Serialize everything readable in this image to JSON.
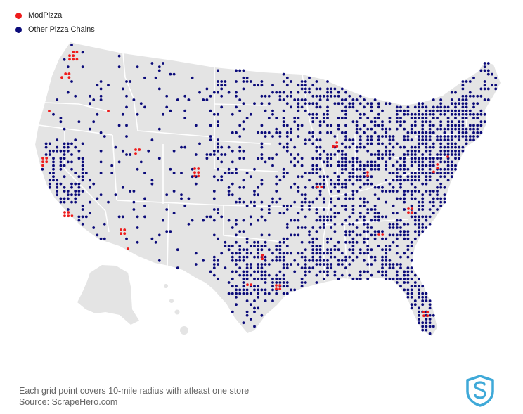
{
  "legend": {
    "items": [
      {
        "label": "ModPizza",
        "color": "#ee1c1c"
      },
      {
        "label": "Other Pizza Chains",
        "color": "#0b0b7a"
      }
    ]
  },
  "footer": {
    "note": "Each grid point covers 10-mile radius with atleast one store",
    "source": "Source: ScrapeHero.com"
  },
  "map": {
    "land_color": "#e4e4e4",
    "border_color": "#ffffff",
    "logo_icon": "scrapehero-shield-icon",
    "logo_color": "#3fa9d8"
  }
}
